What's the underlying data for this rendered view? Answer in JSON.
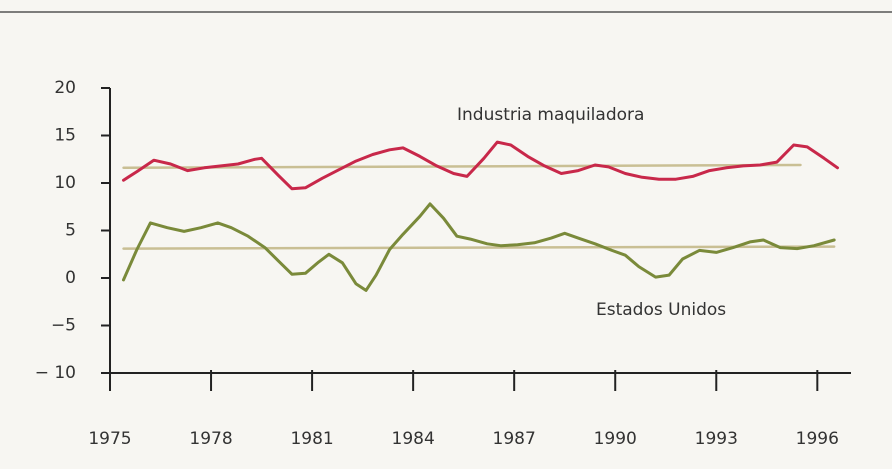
{
  "chart_data": {
    "type": "line",
    "xlim": [
      1975,
      1997
    ],
    "xticks": [
      1975,
      1978,
      1981,
      1984,
      1987,
      1990,
      1993,
      1996
    ],
    "ylim": [
      -10,
      20
    ],
    "yticks": [
      {
        "value": -10,
        "label": "− 10"
      },
      {
        "value": -5,
        "label": "−5"
      },
      0,
      5,
      10,
      15,
      20
    ],
    "series": [
      {
        "name": "Industria maquiladora",
        "color": "#c8284a",
        "x": [
          1975.4,
          1975.8,
          1976.3,
          1976.8,
          1977.3,
          1977.8,
          1978.3,
          1978.8,
          1979.3,
          1979.5,
          1980.0,
          1980.4,
          1980.8,
          1981.3,
          1981.8,
          1982.3,
          1982.8,
          1983.3,
          1983.7,
          1984.2,
          1984.7,
          1985.2,
          1985.6,
          1986.1,
          1986.5,
          1986.9,
          1987.4,
          1987.9,
          1988.4,
          1988.9,
          1989.4,
          1989.8,
          1990.3,
          1990.8,
          1991.3,
          1991.8,
          1992.3,
          1992.8,
          1993.3,
          1993.8,
          1994.3,
          1994.8,
          1995.3,
          1995.7,
          1996.2,
          1996.6
        ],
        "values": [
          10.3,
          11.2,
          12.4,
          12.0,
          11.3,
          11.6,
          11.8,
          12.0,
          12.5,
          12.6,
          10.8,
          9.4,
          9.5,
          10.5,
          11.4,
          12.3,
          13.0,
          13.5,
          13.7,
          12.8,
          11.8,
          11.0,
          10.7,
          12.6,
          14.3,
          14.0,
          12.8,
          11.8,
          11.0,
          11.3,
          11.9,
          11.7,
          11.0,
          10.6,
          10.4,
          10.4,
          10.7,
          11.3,
          11.6,
          11.8,
          11.9,
          12.2,
          14.0,
          13.8,
          12.6,
          11.6
        ],
        "trend": {
          "color": "#c9bf94",
          "x": [
            1975.4,
            1995.5
          ],
          "values": [
            11.6,
            11.9
          ]
        }
      },
      {
        "name": "Estados Unidos",
        "color": "#7a8a3a",
        "x": [
          1975.4,
          1975.8,
          1976.2,
          1976.7,
          1977.2,
          1977.7,
          1978.2,
          1978.6,
          1979.1,
          1979.6,
          1980.0,
          1980.4,
          1980.8,
          1981.2,
          1981.5,
          1981.9,
          1982.3,
          1982.6,
          1982.9,
          1983.3,
          1983.7,
          1984.2,
          1984.5,
          1984.9,
          1985.3,
          1985.7,
          1986.2,
          1986.6,
          1987.1,
          1987.6,
          1988.1,
          1988.5,
          1988.9,
          1989.4,
          1989.9,
          1990.3,
          1990.7,
          1991.2,
          1991.6,
          1992.0,
          1992.5,
          1993.0,
          1993.5,
          1994.0,
          1994.4,
          1994.9,
          1995.4,
          1995.9,
          1996.5
        ],
        "values": [
          -0.2,
          3.0,
          5.8,
          5.3,
          4.9,
          5.3,
          5.8,
          5.3,
          4.4,
          3.2,
          1.8,
          0.4,
          0.5,
          1.7,
          2.5,
          1.6,
          -0.6,
          -1.3,
          0.3,
          3.0,
          4.6,
          6.5,
          7.8,
          6.3,
          4.4,
          4.1,
          3.6,
          3.4,
          3.5,
          3.7,
          4.2,
          4.7,
          4.2,
          3.6,
          2.9,
          2.4,
          1.2,
          0.1,
          0.3,
          2.0,
          2.9,
          2.7,
          3.2,
          3.8,
          4.0,
          3.2,
          3.1,
          3.4,
          4.0
        ],
        "trend": {
          "color": "#c9bf94",
          "x": [
            1975.4,
            1996.5
          ],
          "values": [
            3.1,
            3.3
          ]
        }
      }
    ]
  }
}
